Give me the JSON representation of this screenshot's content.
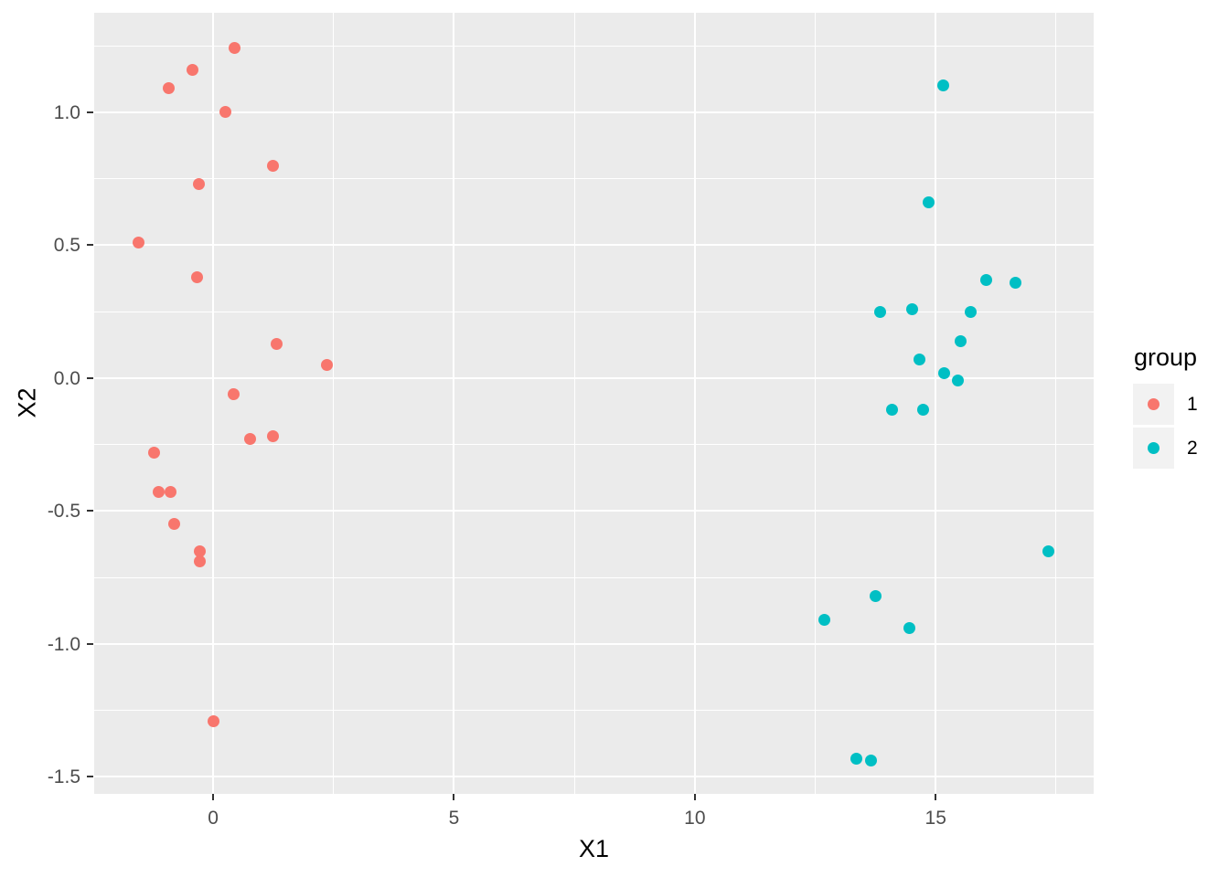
{
  "chart_data": {
    "type": "scatter",
    "title": "",
    "xlabel": "X1",
    "ylabel": "X2",
    "xlim": [
      -2.47,
      18.28
    ],
    "ylim": [
      -1.564,
      1.374
    ],
    "grid": true,
    "x_ticks": {
      "values": [
        0,
        5,
        10,
        15
      ],
      "labels": [
        "0",
        "5",
        "10",
        "15"
      ]
    },
    "y_ticks": {
      "values": [
        1.0,
        0.5,
        0.0,
        -0.5,
        -1.0,
        -1.5
      ],
      "labels": [
        "1.0",
        "0.5",
        "0.0",
        "-0.5",
        "-1.0",
        "-1.5"
      ]
    },
    "x_minor": [
      2.5,
      7.5,
      12.5,
      17.5
    ],
    "y_minor": [
      1.25,
      0.75,
      0.25,
      -0.25,
      -0.75,
      -1.25
    ],
    "legend": {
      "title": "group",
      "position": "right"
    },
    "series": [
      {
        "name": "1",
        "color": "#F8766D",
        "points": [
          [
            0.44,
            1.24
          ],
          [
            -0.42,
            1.16
          ],
          [
            -0.93,
            1.09
          ],
          [
            0.25,
            1.0
          ],
          [
            1.25,
            0.8
          ],
          [
            -0.3,
            0.73
          ],
          [
            -1.54,
            0.51
          ],
          [
            -0.34,
            0.38
          ],
          [
            1.31,
            0.13
          ],
          [
            2.37,
            0.05
          ],
          [
            0.42,
            -0.06
          ],
          [
            1.25,
            -0.22
          ],
          [
            0.76,
            -0.23
          ],
          [
            -1.23,
            -0.28
          ],
          [
            -1.14,
            -0.43
          ],
          [
            -0.89,
            -0.43
          ],
          [
            -0.8,
            -0.55
          ],
          [
            -0.28,
            -0.65
          ],
          [
            -0.28,
            -0.69
          ],
          [
            0.0,
            -1.29
          ]
        ]
      },
      {
        "name": "2",
        "color": "#00BFC4",
        "points": [
          [
            15.16,
            1.1
          ],
          [
            14.86,
            0.66
          ],
          [
            16.05,
            0.37
          ],
          [
            16.66,
            0.36
          ],
          [
            13.85,
            0.25
          ],
          [
            14.52,
            0.26
          ],
          [
            15.73,
            0.25
          ],
          [
            15.52,
            0.14
          ],
          [
            14.67,
            0.07
          ],
          [
            15.18,
            0.02
          ],
          [
            15.46,
            -0.01
          ],
          [
            14.1,
            -0.12
          ],
          [
            14.74,
            -0.12
          ],
          [
            17.34,
            -0.65
          ],
          [
            13.76,
            -0.82
          ],
          [
            12.69,
            -0.91
          ],
          [
            14.46,
            -0.94
          ],
          [
            13.36,
            -1.43
          ],
          [
            13.66,
            -1.44
          ]
        ]
      }
    ],
    "colors": {
      "panel_bg": "#EBEBEB",
      "gridline": "#FFFFFF",
      "axis_text": "#4D4D4D",
      "axis_title": "#000000",
      "tick_mark": "#333333",
      "legend_key_bg": "#F2F2F2"
    }
  }
}
